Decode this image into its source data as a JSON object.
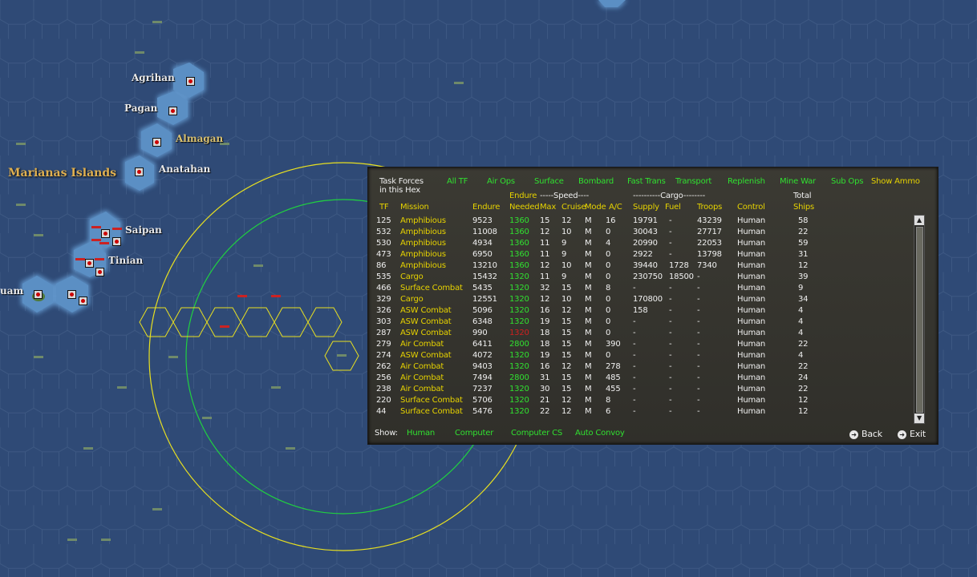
{
  "map": {
    "region_label": "Marianas Islands",
    "locations": [
      {
        "name": "Agrihan",
        "style": "white"
      },
      {
        "name": "Pagan",
        "style": "white"
      },
      {
        "name": "Almagan",
        "style": "yellow"
      },
      {
        "name": "Anatahan",
        "style": "white"
      },
      {
        "name": "Saipan",
        "style": "white"
      },
      {
        "name": "Tinian",
        "style": "white"
      },
      {
        "name": "uam",
        "style": "white"
      }
    ]
  },
  "panel": {
    "title_line1": "Task Forces",
    "title_line2": "in this Hex",
    "filters": [
      "All TF",
      "Air Ops",
      "Surface",
      "Bombard",
      "Fast Trans",
      "Transport",
      "Replenish",
      "Mine War",
      "Sub Ops",
      "Show Ammo"
    ],
    "headers": {
      "endure_top": "Endure",
      "speed_group": "-----Speed----",
      "cargo_group": "----------Cargo--------",
      "total_top": "Total",
      "tf": "TF",
      "mission": "Mission",
      "endure": "Endure",
      "needed": "Needed",
      "max": "Max",
      "cruise": "Cruise",
      "mode": "Mode",
      "ac": "A/C",
      "supply": "Supply",
      "fuel": "Fuel",
      "troops": "Troops",
      "control": "Control",
      "ships": "Ships"
    },
    "rows": [
      {
        "tf": "125",
        "mission": "Amphibious",
        "endure": "9523",
        "needed": "1360",
        "needed_ok": true,
        "max": "15",
        "cruise": "12",
        "mode": "M",
        "ac": "16",
        "supply": "19791",
        "fuel": "-",
        "troops": "43239",
        "control": "Human",
        "ships": "58"
      },
      {
        "tf": "532",
        "mission": "Amphibious",
        "endure": "11008",
        "needed": "1360",
        "needed_ok": true,
        "max": "12",
        "cruise": "10",
        "mode": "M",
        "ac": "0",
        "supply": "30043",
        "fuel": "-",
        "troops": "27717",
        "control": "Human",
        "ships": "22"
      },
      {
        "tf": "530",
        "mission": "Amphibious",
        "endure": "4934",
        "needed": "1360",
        "needed_ok": true,
        "max": "11",
        "cruise": "9",
        "mode": "M",
        "ac": "4",
        "supply": "20990",
        "fuel": "-",
        "troops": "22053",
        "control": "Human",
        "ships": "59"
      },
      {
        "tf": "473",
        "mission": "Amphibious",
        "endure": "6950",
        "needed": "1360",
        "needed_ok": true,
        "max": "11",
        "cruise": "9",
        "mode": "M",
        "ac": "0",
        "supply": "2922",
        "fuel": "-",
        "troops": "13798",
        "control": "Human",
        "ships": "31"
      },
      {
        "tf": "86",
        "mission": "Amphibious",
        "endure": "13210",
        "needed": "1360",
        "needed_ok": true,
        "max": "12",
        "cruise": "10",
        "mode": "M",
        "ac": "0",
        "supply": "39440",
        "fuel": "1728",
        "troops": "7340",
        "control": "Human",
        "ships": "12"
      },
      {
        "tf": "535",
        "mission": "Cargo",
        "endure": "15432",
        "needed": "1320",
        "needed_ok": true,
        "max": "11",
        "cruise": "9",
        "mode": "M",
        "ac": "0",
        "supply": "230750",
        "fuel": "18500",
        "troops": "-",
        "control": "Human",
        "ships": "39"
      },
      {
        "tf": "466",
        "mission": "Surface Combat",
        "endure": "5435",
        "needed": "1320",
        "needed_ok": true,
        "max": "32",
        "cruise": "15",
        "mode": "M",
        "ac": "8",
        "supply": "-",
        "fuel": "-",
        "troops": "-",
        "control": "Human",
        "ships": "9"
      },
      {
        "tf": "329",
        "mission": "Cargo",
        "endure": "12551",
        "needed": "1320",
        "needed_ok": true,
        "max": "12",
        "cruise": "10",
        "mode": "M",
        "ac": "0",
        "supply": "170800",
        "fuel": "-",
        "troops": "-",
        "control": "Human",
        "ships": "34"
      },
      {
        "tf": "326",
        "mission": "ASW Combat",
        "endure": "5096",
        "needed": "1320",
        "needed_ok": true,
        "max": "16",
        "cruise": "12",
        "mode": "M",
        "ac": "0",
        "supply": "158",
        "fuel": "-",
        "troops": "-",
        "control": "Human",
        "ships": "4"
      },
      {
        "tf": "303",
        "mission": "ASW Combat",
        "endure": "6348",
        "needed": "1320",
        "needed_ok": true,
        "max": "19",
        "cruise": "15",
        "mode": "M",
        "ac": "0",
        "supply": "-",
        "fuel": "-",
        "troops": "-",
        "control": "Human",
        "ships": "4"
      },
      {
        "tf": "287",
        "mission": "ASW Combat",
        "endure": "990",
        "needed": "1320",
        "needed_ok": false,
        "max": "18",
        "cruise": "15",
        "mode": "M",
        "ac": "0",
        "supply": "-",
        "fuel": "-",
        "troops": "-",
        "control": "Human",
        "ships": "4"
      },
      {
        "tf": "279",
        "mission": "Air Combat",
        "endure": "6411",
        "needed": "2800",
        "needed_ok": true,
        "max": "18",
        "cruise": "15",
        "mode": "M",
        "ac": "390",
        "supply": "-",
        "fuel": "-",
        "troops": "-",
        "control": "Human",
        "ships": "22"
      },
      {
        "tf": "274",
        "mission": "ASW Combat",
        "endure": "4072",
        "needed": "1320",
        "needed_ok": true,
        "max": "19",
        "cruise": "15",
        "mode": "M",
        "ac": "0",
        "supply": "-",
        "fuel": "-",
        "troops": "-",
        "control": "Human",
        "ships": "4"
      },
      {
        "tf": "262",
        "mission": "Air Combat",
        "endure": "9403",
        "needed": "1320",
        "needed_ok": true,
        "max": "16",
        "cruise": "12",
        "mode": "M",
        "ac": "278",
        "supply": "-",
        "fuel": "-",
        "troops": "-",
        "control": "Human",
        "ships": "22"
      },
      {
        "tf": "256",
        "mission": "Air Combat",
        "endure": "7494",
        "needed": "2800",
        "needed_ok": true,
        "max": "31",
        "cruise": "15",
        "mode": "M",
        "ac": "485",
        "supply": "-",
        "fuel": "-",
        "troops": "-",
        "control": "Human",
        "ships": "24"
      },
      {
        "tf": "238",
        "mission": "Air Combat",
        "endure": "7237",
        "needed": "1320",
        "needed_ok": true,
        "max": "30",
        "cruise": "15",
        "mode": "M",
        "ac": "455",
        "supply": "-",
        "fuel": "-",
        "troops": "-",
        "control": "Human",
        "ships": "22"
      },
      {
        "tf": "220",
        "mission": "Surface Combat",
        "endure": "5706",
        "needed": "1320",
        "needed_ok": true,
        "max": "21",
        "cruise": "12",
        "mode": "M",
        "ac": "8",
        "supply": "-",
        "fuel": "-",
        "troops": "-",
        "control": "Human",
        "ships": "12"
      },
      {
        "tf": "44",
        "mission": "Surface Combat",
        "endure": "5476",
        "needed": "1320",
        "needed_ok": true,
        "max": "22",
        "cruise": "12",
        "mode": "M",
        "ac": "6",
        "supply": "-",
        "fuel": "-",
        "troops": "-",
        "control": "Human",
        "ships": "12"
      }
    ],
    "show_label": "Show:",
    "show_options": [
      "Human",
      "Computer",
      "Computer CS",
      "Auto Convoy"
    ],
    "back_label": "Back",
    "exit_label": "Exit"
  },
  "colors": {
    "sea": "#2f4a76",
    "hex_line": "#3f5a84",
    "island_hex": "#5b8fc4",
    "range_yellow": "#e8e020",
    "range_green": "#20d040",
    "green_text": "#30e030",
    "yellow_text": "#e6d200",
    "red_text": "#d02020"
  }
}
